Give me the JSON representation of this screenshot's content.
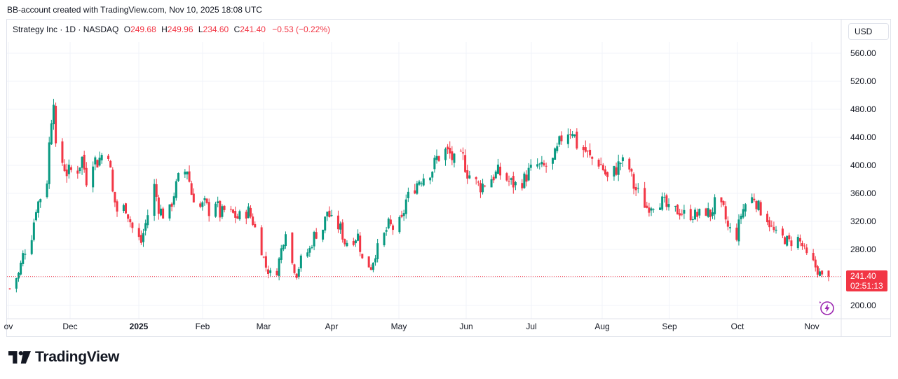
{
  "header": {
    "attribution": "BB-account created with TradingView.com, Nov 10, 2025 18:08 UTC"
  },
  "legend": {
    "symbol_line": "Strategy Inc · 1D · NASDAQ",
    "open_key": "O",
    "open": "249.68",
    "high_key": "H",
    "high": "249.96",
    "low_key": "L",
    "low": "234.60",
    "close_key": "C",
    "close": "241.40",
    "change": "−0.53 (−0.22%)"
  },
  "currency_button": "USD",
  "last_price": {
    "price": "241.40",
    "countdown": "02:51:13"
  },
  "brand": {
    "name": "TradingView"
  },
  "colors": {
    "up": "#089981",
    "down": "#f23645",
    "grid": "#f0f3fa",
    "text": "#131722"
  },
  "chart_data": {
    "type": "candlestick",
    "title": "Strategy Inc · 1D · NASDAQ",
    "y_axis": {
      "min": 200,
      "max": 560,
      "ticks": [
        "560.00",
        "520.00",
        "480.00",
        "440.00",
        "400.00",
        "360.00",
        "320.00",
        "280.00",
        "240.00",
        "200.00"
      ],
      "position": "right",
      "unit": "USD"
    },
    "x_axis": {
      "ticks": [
        "ov",
        "Dec",
        "2025",
        "Feb",
        "Mar",
        "Apr",
        "May",
        "Jun",
        "Jul",
        "Aug",
        "Sep",
        "Oct",
        "Nov"
      ],
      "range": [
        "2024-11-01",
        "2025-11-10"
      ]
    },
    "grid": true,
    "last_price_line": 241.4,
    "approx_close_series": [
      [
        "2024-11-01",
        224
      ],
      [
        "2024-11-05",
        245
      ],
      [
        "2024-11-07",
        272
      ],
      [
        "2024-11-11",
        300
      ],
      [
        "2024-11-13",
        340
      ],
      [
        "2024-11-15",
        355
      ],
      [
        "2024-11-18",
        380
      ],
      [
        "2024-11-19",
        430
      ],
      [
        "2024-11-20",
        470
      ],
      [
        "2024-11-21",
        500
      ],
      [
        "2024-11-22",
        420
      ],
      [
        "2024-11-25",
        405
      ],
      [
        "2024-11-27",
        390
      ],
      [
        "2024-12-02",
        395
      ],
      [
        "2024-12-04",
        410
      ],
      [
        "2024-12-06",
        380
      ],
      [
        "2024-12-09",
        410
      ],
      [
        "2024-12-11",
        405
      ],
      [
        "2024-12-13",
        415
      ],
      [
        "2024-12-16",
        420
      ],
      [
        "2024-12-18",
        360
      ],
      [
        "2024-12-20",
        335
      ],
      [
        "2024-12-24",
        340
      ],
      [
        "2024-12-27",
        310
      ],
      [
        "2024-12-31",
        290
      ],
      [
        "2025-01-03",
        330
      ],
      [
        "2025-01-06",
        370
      ],
      [
        "2025-01-08",
        340
      ],
      [
        "2025-01-10",
        330
      ],
      [
        "2025-01-13",
        335
      ],
      [
        "2025-01-15",
        360
      ],
      [
        "2025-01-17",
        380
      ],
      [
        "2025-01-21",
        395
      ],
      [
        "2025-01-23",
        360
      ],
      [
        "2025-01-27",
        340
      ],
      [
        "2025-01-29",
        345
      ],
      [
        "2025-01-31",
        335
      ],
      [
        "2025-02-03",
        350
      ],
      [
        "2025-02-05",
        330
      ],
      [
        "2025-02-07",
        335
      ],
      [
        "2025-02-11",
        330
      ],
      [
        "2025-02-13",
        325
      ],
      [
        "2025-02-18",
        335
      ],
      [
        "2025-02-20",
        320
      ],
      [
        "2025-02-24",
        280
      ],
      [
        "2025-02-26",
        255
      ],
      [
        "2025-02-28",
        245
      ],
      [
        "2025-03-03",
        250
      ],
      [
        "2025-03-05",
        280
      ],
      [
        "2025-03-07",
        310
      ],
      [
        "2025-03-10",
        260
      ],
      [
        "2025-03-12",
        245
      ],
      [
        "2025-03-14",
        265
      ],
      [
        "2025-03-18",
        280
      ],
      [
        "2025-03-20",
        300
      ],
      [
        "2025-03-24",
        310
      ],
      [
        "2025-03-26",
        335
      ],
      [
        "2025-03-28",
        320
      ],
      [
        "2025-04-01",
        310
      ],
      [
        "2025-04-03",
        290
      ],
      [
        "2025-04-07",
        295
      ],
      [
        "2025-04-09",
        300
      ],
      [
        "2025-04-11",
        265
      ],
      [
        "2025-04-15",
        255
      ],
      [
        "2025-04-17",
        275
      ],
      [
        "2025-04-21",
        300
      ],
      [
        "2025-04-23",
        315
      ],
      [
        "2025-04-25",
        310
      ],
      [
        "2025-04-29",
        320
      ],
      [
        "2025-05-01",
        350
      ],
      [
        "2025-05-05",
        370
      ],
      [
        "2025-05-07",
        380
      ],
      [
        "2025-05-09",
        385
      ],
      [
        "2025-05-13",
        395
      ],
      [
        "2025-05-15",
        410
      ],
      [
        "2025-05-19",
        420
      ],
      [
        "2025-05-21",
        415
      ],
      [
        "2025-05-23",
        405
      ],
      [
        "2025-05-27",
        410
      ],
      [
        "2025-05-29",
        390
      ],
      [
        "2025-06-02",
        375
      ],
      [
        "2025-06-04",
        370
      ],
      [
        "2025-06-06",
        375
      ],
      [
        "2025-06-10",
        385
      ],
      [
        "2025-06-12",
        390
      ],
      [
        "2025-06-16",
        380
      ],
      [
        "2025-06-18",
        375
      ],
      [
        "2025-06-20",
        372
      ],
      [
        "2025-06-24",
        380
      ],
      [
        "2025-06-26",
        390
      ],
      [
        "2025-06-30",
        400
      ],
      [
        "2025-07-02",
        395
      ],
      [
        "2025-07-07",
        405
      ],
      [
        "2025-07-09",
        420
      ],
      [
        "2025-07-11",
        440
      ],
      [
        "2025-07-14",
        450
      ],
      [
        "2025-07-16",
        452
      ],
      [
        "2025-07-18",
        430
      ],
      [
        "2025-07-22",
        420
      ],
      [
        "2025-07-24",
        410
      ],
      [
        "2025-07-28",
        405
      ],
      [
        "2025-07-30",
        395
      ],
      [
        "2025-08-01",
        380
      ],
      [
        "2025-08-05",
        395
      ],
      [
        "2025-08-07",
        405
      ],
      [
        "2025-08-11",
        395
      ],
      [
        "2025-08-13",
        370
      ],
      [
        "2025-08-15",
        360
      ],
      [
        "2025-08-19",
        340
      ],
      [
        "2025-08-21",
        345
      ],
      [
        "2025-08-25",
        350
      ],
      [
        "2025-08-27",
        345
      ],
      [
        "2025-08-29",
        335
      ],
      [
        "2025-09-03",
        335
      ],
      [
        "2025-09-05",
        330
      ],
      [
        "2025-09-09",
        330
      ],
      [
        "2025-09-11",
        328
      ],
      [
        "2025-09-15",
        335
      ],
      [
        "2025-09-17",
        330
      ],
      [
        "2025-09-19",
        345
      ],
      [
        "2025-09-23",
        335
      ],
      [
        "2025-09-25",
        310
      ],
      [
        "2025-09-29",
        300
      ],
      [
        "2025-10-01",
        330
      ],
      [
        "2025-10-03",
        345
      ],
      [
        "2025-10-07",
        355
      ],
      [
        "2025-10-09",
        340
      ],
      [
        "2025-10-13",
        325
      ],
      [
        "2025-10-15",
        310
      ],
      [
        "2025-10-17",
        300
      ],
      [
        "2025-10-21",
        295
      ],
      [
        "2025-10-23",
        290
      ],
      [
        "2025-10-27",
        295
      ],
      [
        "2025-10-29",
        285
      ],
      [
        "2025-10-31",
        270
      ],
      [
        "2025-11-03",
        260
      ],
      [
        "2025-11-05",
        250
      ],
      [
        "2025-11-07",
        240
      ],
      [
        "2025-11-10",
        241.4
      ]
    ]
  }
}
